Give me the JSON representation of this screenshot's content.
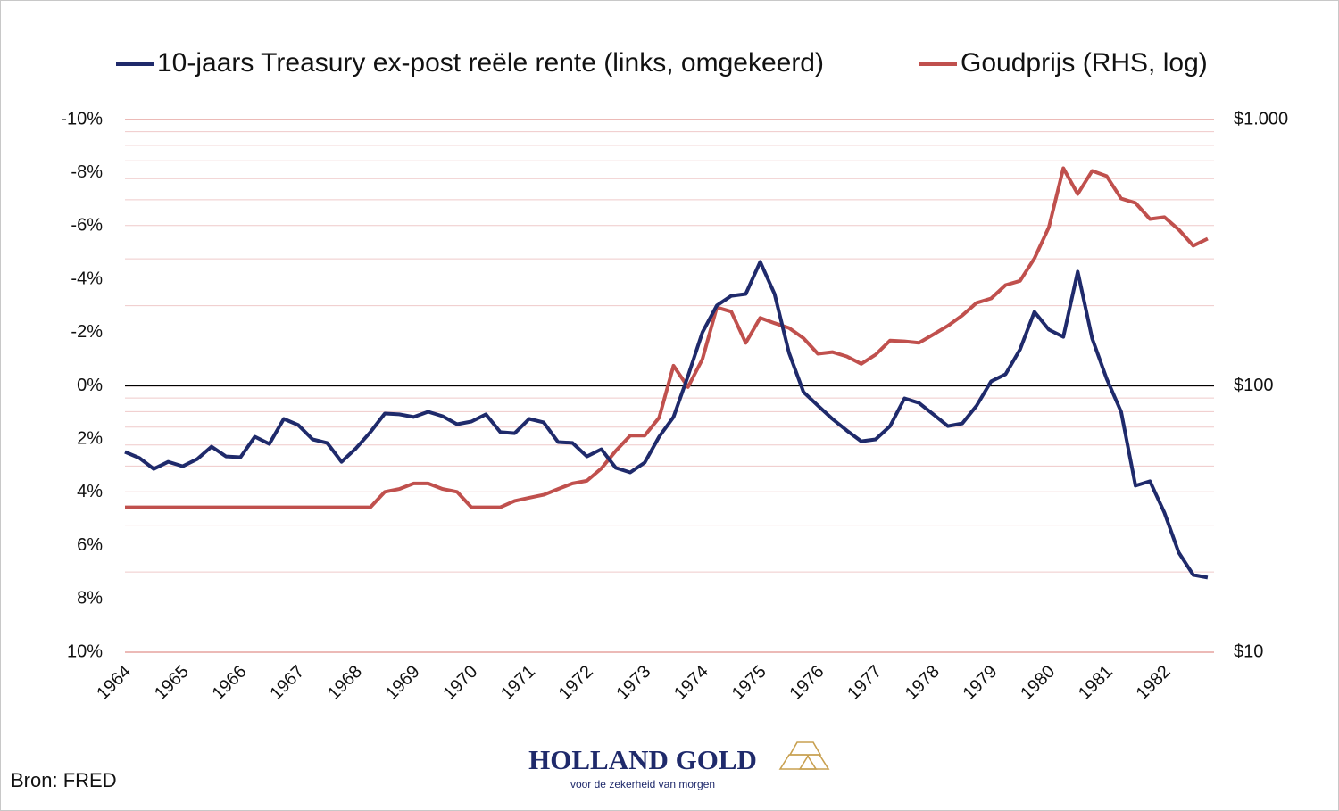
{
  "chart_data": {
    "type": "line",
    "legend": "top",
    "x": [
      1964,
      1964.25,
      1964.5,
      1964.75,
      1965,
      1965.25,
      1965.5,
      1965.75,
      1966,
      1966.25,
      1966.5,
      1966.75,
      1967,
      1967.25,
      1967.5,
      1967.75,
      1968,
      1968.25,
      1968.5,
      1968.75,
      1969,
      1969.25,
      1969.5,
      1969.75,
      1970,
      1970.25,
      1970.5,
      1970.75,
      1971,
      1971.25,
      1971.5,
      1971.75,
      1972,
      1972.25,
      1972.5,
      1972.75,
      1973,
      1973.25,
      1973.5,
      1973.75,
      1974,
      1974.25,
      1974.5,
      1974.75,
      1975,
      1975.25,
      1975.5,
      1975.75,
      1976,
      1976.25,
      1976.5,
      1976.75,
      1977,
      1977.25,
      1977.5,
      1977.75,
      1978,
      1978.25,
      1978.5,
      1978.75,
      1979,
      1979.25,
      1979.5,
      1979.75,
      1980,
      1980.25,
      1980.5,
      1980.75,
      1981,
      1981.25,
      1981.5,
      1981.75,
      1982,
      1982.25,
      1982.5,
      1982.75
    ],
    "xlim": [
      1964,
      1982.86
    ],
    "xticks": [
      1964,
      1965,
      1966,
      1967,
      1968,
      1969,
      1970,
      1971,
      1972,
      1973,
      1974,
      1975,
      1976,
      1977,
      1978,
      1979,
      1980,
      1981,
      1982
    ],
    "ylim": [
      -10,
      10
    ],
    "y_inverted": true,
    "yticks": [
      {
        "value": -10,
        "label": "-10%"
      },
      {
        "value": -8,
        "label": "-8%"
      },
      {
        "value": -6,
        "label": "-6%"
      },
      {
        "value": -4,
        "label": "-4%"
      },
      {
        "value": -2,
        "label": "-2%"
      },
      {
        "value": 0,
        "label": "0%"
      },
      {
        "value": 2,
        "label": "2%"
      },
      {
        "value": 4,
        "label": "4%"
      },
      {
        "value": 6,
        "label": "6%"
      },
      {
        "value": 8,
        "label": "8%"
      },
      {
        "value": 10,
        "label": "10%"
      }
    ],
    "zero_line": true,
    "y2lim": [
      10,
      1000
    ],
    "y2_log": true,
    "y2ticks": [
      {
        "value": 10,
        "label": "$10"
      },
      {
        "value": 100,
        "label": "$100"
      },
      {
        "value": 1000,
        "label": "$1.000"
      }
    ],
    "y2minorticks": [
      20,
      30,
      40,
      50,
      60,
      70,
      80,
      90,
      200,
      300,
      400,
      500,
      600,
      700,
      800,
      900
    ],
    "grid": true,
    "series": [
      {
        "name": "10-jaars Treasury ex-post reële rente (links, omgekeerd)",
        "color": "#1f2a6b",
        "axis": "y",
        "values": [
          2.48,
          2.71,
          3.12,
          2.85,
          3.02,
          2.75,
          2.28,
          2.65,
          2.68,
          1.91,
          2.18,
          1.24,
          1.47,
          2.01,
          2.14,
          2.85,
          2.35,
          1.74,
          1.04,
          1.07,
          1.17,
          0.97,
          1.14,
          1.44,
          1.34,
          1.07,
          1.74,
          1.78,
          1.24,
          1.37,
          2.11,
          2.14,
          2.65,
          2.38,
          3.08,
          3.25,
          2.88,
          1.91,
          1.17,
          -0.37,
          -2.01,
          -3.02,
          -3.38,
          -3.45,
          -4.66,
          -3.45,
          -1.24,
          0.23,
          0.74,
          1.24,
          1.68,
          2.08,
          2.01,
          1.51,
          0.47,
          0.64,
          1.07,
          1.51,
          1.41,
          0.74,
          -0.17,
          -0.44,
          -1.37,
          -2.78,
          -2.11,
          -1.84,
          -4.29,
          -1.78,
          -0.27,
          0.97,
          3.75,
          3.58,
          4.76,
          6.26,
          7.1,
          7.2
        ]
      },
      {
        "name": "Goudprijs (RHS, log)",
        "color": "#c0504d",
        "axis": "y2",
        "values": [
          35,
          35,
          35,
          35,
          35,
          35,
          35,
          35,
          35,
          35,
          35,
          35,
          35,
          35,
          35,
          35,
          35,
          35,
          40,
          41,
          43,
          43,
          41,
          40,
          35,
          35,
          35,
          37,
          38,
          39,
          41,
          43,
          44,
          49,
          57,
          65,
          65,
          76,
          119,
          99,
          126,
          197,
          190,
          145,
          180,
          172,
          165,
          151,
          132,
          134,
          129,
          121,
          131,
          148,
          147,
          145,
          156,
          168,
          184,
          205,
          213,
          239,
          248,
          301,
          394,
          657,
          525,
          642,
          613,
          505,
          486,
          423,
          430,
          386,
          336,
          357
        ]
      }
    ],
    "source": "Bron: FRED",
    "logo_name": "HOLLAND GOLD",
    "logo_tagline": "voor de zekerheid van morgen"
  }
}
